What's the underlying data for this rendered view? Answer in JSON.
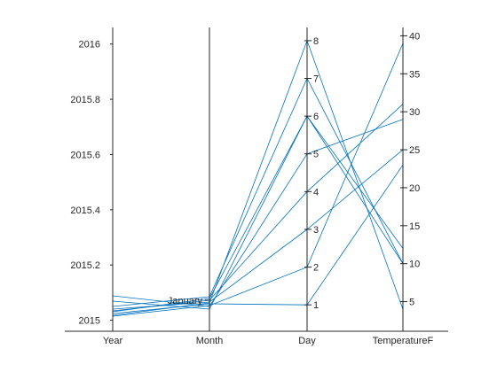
{
  "chart_data": {
    "type": "parallel-coordinates",
    "title": "",
    "grid": false,
    "series_color": "#0072BD",
    "axes": [
      {
        "name": "Year",
        "label": "Year",
        "range": [
          2014.96,
          2016.06
        ],
        "ticks": [
          2015,
          2015.2,
          2015.4,
          2015.6,
          2015.8,
          2016
        ],
        "tick_labels": [
          "2015",
          "2015.2",
          "2015.4",
          "2015.6",
          "2015.8",
          "2016"
        ],
        "tick_side": "left"
      },
      {
        "name": "Month",
        "label": "Month",
        "categorical": true,
        "categories": [
          "January"
        ],
        "tick_labels": [
          "January"
        ],
        "tick_side": "left"
      },
      {
        "name": "Day",
        "label": "Day",
        "range": [
          0.3,
          8.35
        ],
        "ticks": [
          1,
          2,
          3,
          4,
          5,
          6,
          7,
          8
        ],
        "tick_labels": [
          "1",
          "2",
          "3",
          "4",
          "5",
          "6",
          "7",
          "8"
        ],
        "tick_side": "right"
      },
      {
        "name": "TemperatureF",
        "label": "TemperatureF",
        "range": [
          1.1,
          41.1
        ],
        "ticks": [
          5,
          10,
          15,
          20,
          25,
          30,
          35,
          40
        ],
        "tick_labels": [
          "5",
          "10",
          "15",
          "20",
          "25",
          "30",
          "35",
          "40"
        ],
        "tick_side": "right"
      }
    ],
    "records": [
      {
        "values": [
          2015,
          "January",
          1,
          23
        ]
      },
      {
        "values": [
          2015,
          "January",
          2,
          39
        ]
      },
      {
        "values": [
          2015,
          "January",
          3,
          25
        ]
      },
      {
        "values": [
          2015,
          "January",
          4,
          31
        ]
      },
      {
        "values": [
          2015,
          "January",
          5,
          29
        ]
      },
      {
        "values": [
          2015,
          "January",
          6,
          12
        ]
      },
      {
        "values": [
          2015,
          "January",
          6,
          10
        ]
      },
      {
        "values": [
          2015,
          "January",
          7,
          10
        ]
      },
      {
        "values": [
          2015,
          "January",
          8,
          4
        ]
      }
    ]
  }
}
